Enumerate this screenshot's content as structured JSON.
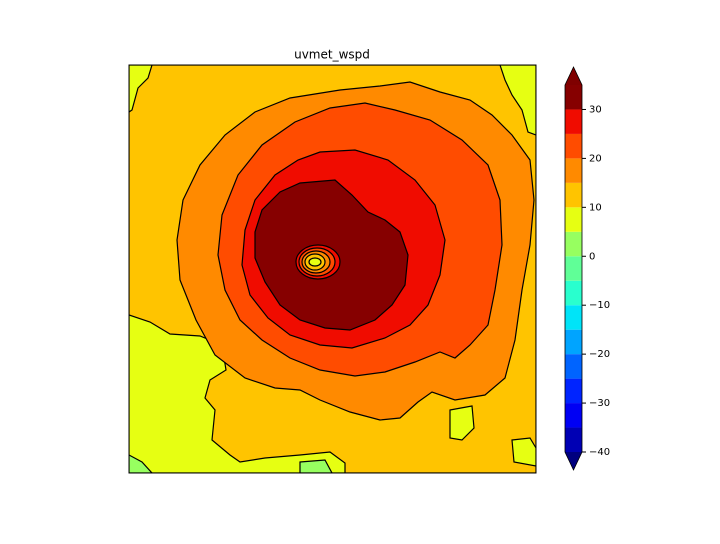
{
  "chart_data": {
    "type": "contourf",
    "title": "uvmet_wspd",
    "levels": [
      -40,
      -35,
      -30,
      -25,
      -20,
      -15,
      -10,
      -5,
      0,
      5,
      10,
      15,
      20,
      25,
      30,
      35
    ],
    "colors": [
      "#0000b4",
      "#0000f4",
      "#0024ff",
      "#0064ff",
      "#00a4ff",
      "#00e4f8",
      "#29ffce",
      "#60ff97",
      "#97ff60",
      "#e6ff12",
      "#ffc400",
      "#ff8a00",
      "#ff4c00",
      "#f00c00",
      "#860000"
    ],
    "color_under": "#00007f",
    "color_over": "#7f0000",
    "clim": [
      -40,
      35
    ],
    "cticks": [
      {
        "value": -40,
        "label": "−40"
      },
      {
        "value": -30,
        "label": "−30"
      },
      {
        "value": -20,
        "label": "−20"
      },
      {
        "value": -10,
        "label": "−10"
      },
      0,
      10,
      20,
      30
    ]
  }
}
